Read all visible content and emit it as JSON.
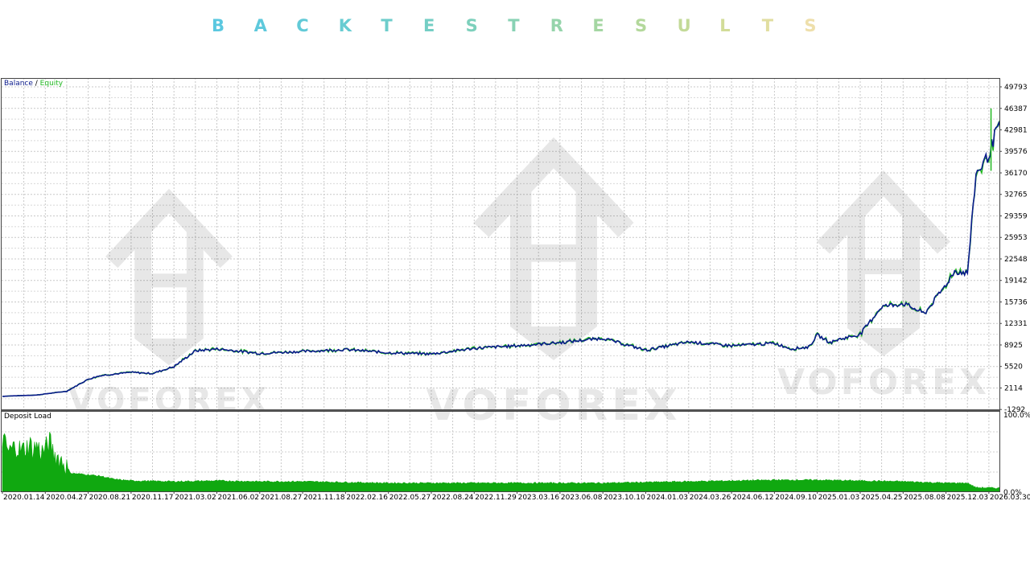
{
  "title_letters": [
    "B",
    "A",
    "C",
    "K",
    "T",
    "E",
    "S",
    "T",
    "R",
    "E",
    "S",
    "U",
    "L",
    "T",
    "S"
  ],
  "title_colors": [
    "#5bc8e0",
    "#5ec9dc",
    "#62cad7",
    "#67ccd2",
    "#6dcdcb",
    "#74cec4",
    "#7dd0bc",
    "#88d2b4",
    "#95d4ab",
    "#a4d6a2",
    "#b3d89b",
    "#c3da98",
    "#d2dc98",
    "#e1dea0",
    "#eedfab"
  ],
  "watermark": "VOFOREX",
  "chart_data": [
    {
      "type": "line",
      "legend": [
        "Balance",
        "Equity"
      ],
      "legend_separator": " / ",
      "colors": {
        "balance": "#0a1a8c",
        "equity": "#22b822"
      },
      "x_tick_labels": [
        "2020.01.14",
        "2020.04.27",
        "2020.08.21",
        "2020.11.17",
        "2021.03.02",
        "2021.06.02",
        "2021.08.27",
        "2021.11.18",
        "2022.02.16",
        "2022.05.27",
        "2022.08.24",
        "2022.11.29",
        "2023.03.16",
        "2023.06.08",
        "2023.10.10",
        "2024.01.03",
        "2024.03.26",
        "2024.06.12",
        "2024.09.10",
        "2025.01.03",
        "2025.04.25",
        "2025.08.08",
        "2025.12.03",
        "2026.03.30"
      ],
      "y_tick_labels": [
        "49793",
        "46387",
        "42981",
        "39576",
        "36170",
        "32765",
        "29359",
        "25953",
        "22548",
        "19142",
        "15736",
        "12331",
        "8925",
        "5520",
        "2114",
        "-1292"
      ],
      "ylim": [
        -1292,
        51500
      ],
      "grid": true,
      "series": [
        {
          "name": "Balance",
          "x": [
            0,
            0.8,
            1.5,
            2,
            2.3,
            3,
            3.5,
            4,
            4.5,
            5,
            6,
            7,
            8,
            9,
            10,
            11,
            12,
            13,
            14,
            15,
            16,
            17,
            18,
            18.4,
            18.8,
            19,
            19.3,
            19.5,
            20,
            20.5,
            21,
            21.5,
            22,
            22.2,
            22.5,
            22.7,
            23,
            23.2,
            23.5
          ],
          "y": [
            800,
            1000,
            1600,
            3500,
            4100,
            4600,
            4400,
            5500,
            8000,
            8300,
            7600,
            7900,
            8200,
            7700,
            7500,
            8400,
            8800,
            9300,
            10000,
            8100,
            9400,
            8800,
            9200,
            8300,
            8600,
            10500,
            9300,
            9800,
            10600,
            15000,
            15500,
            13900,
            18500,
            20600,
            20300,
            36000,
            39000,
            43500,
            40200
          ]
        }
      ]
    },
    {
      "type": "area",
      "title": "Deposit Load",
      "color": "#10a810",
      "x_tick_labels": [
        "2020.01.14",
        "2020.04.27",
        "2020.08.21",
        "2020.11.17",
        "2021.03.02",
        "2021.06.02",
        "2021.08.27",
        "2021.11.18",
        "2022.02.16",
        "2022.05.27",
        "2022.08.24",
        "2022.11.29",
        "2023.03.16",
        "2023.06.08",
        "2023.10.10",
        "2024.01.03",
        "2024.03.26",
        "2024.06.12",
        "2024.09.10",
        "2025.01.03",
        "2025.04.25",
        "2025.08.08",
        "2025.12.03",
        "2026.03.30"
      ],
      "y_tick_labels": [
        "100.0%",
        "0.0%"
      ],
      "ylim": [
        0,
        100
      ],
      "x": [
        0,
        0.15,
        0.3,
        0.45,
        0.55,
        0.65,
        0.7,
        0.8,
        0.9,
        1,
        1.1,
        1.2,
        1.4,
        1.6,
        1.8,
        2,
        2.3,
        2.6,
        3,
        4,
        5,
        6,
        7,
        8,
        9,
        10,
        11,
        12,
        13,
        14,
        15,
        16,
        17,
        18,
        19,
        20,
        21,
        22,
        22.5,
        22.7,
        23.5
      ],
      "y": [
        70,
        52,
        60,
        54,
        58,
        62,
        55,
        61,
        52,
        56,
        66,
        50,
        40,
        24,
        23,
        22,
        20,
        16,
        14,
        13,
        14,
        13,
        13,
        12,
        11,
        11,
        11,
        11,
        11,
        11,
        12,
        13,
        14,
        15,
        15,
        14,
        13,
        11,
        11,
        5,
        4
      ]
    }
  ]
}
